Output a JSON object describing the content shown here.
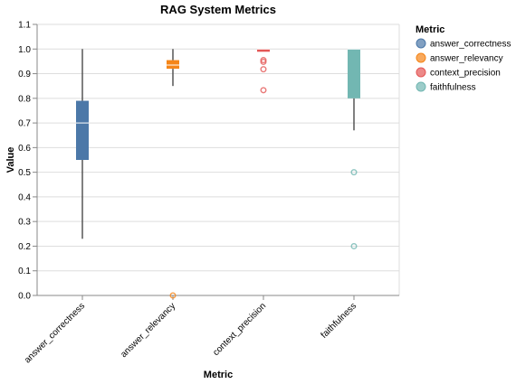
{
  "chart_data": {
    "type": "boxplot",
    "title": "RAG System Metrics",
    "xlabel": "Metric",
    "ylabel": "Value",
    "ylim": [
      0,
      1.1
    ],
    "yticks": [
      "0.0",
      "0.1",
      "0.2",
      "0.3",
      "0.4",
      "0.5",
      "0.6",
      "0.7",
      "0.8",
      "0.9",
      "1.0",
      "1.1"
    ],
    "categories": [
      "answer_correctness",
      "answer_relevancy",
      "context_precision",
      "faithfulness"
    ],
    "grid": "horizontal",
    "legend": {
      "title": "Metric",
      "position": "right",
      "entries": [
        "answer_correctness",
        "answer_relevancy",
        "context_precision",
        "faithfulness"
      ]
    },
    "series": [
      {
        "category": "answer_correctness",
        "color": "#4c78a8",
        "min": 0.23,
        "q1": 0.55,
        "median": 0.7,
        "q3": 0.79,
        "max": 1.0,
        "outliers": []
      },
      {
        "category": "answer_relevancy",
        "color": "#f58518",
        "min": 0.85,
        "q1": 0.92,
        "median": 0.935,
        "q3": 0.955,
        "max": 1.0,
        "outliers": [
          0.0
        ]
      },
      {
        "category": "context_precision",
        "color": "#e45756",
        "min": 0.99,
        "q1": 0.99,
        "median": 1.0,
        "q3": 1.0,
        "max": 1.0,
        "outliers": [
          0.955,
          0.948,
          0.918,
          0.833
        ]
      },
      {
        "category": "faithfulness",
        "color": "#72b7b2",
        "min": 0.67,
        "q1": 0.8,
        "median": 1.0,
        "q3": 1.0,
        "max": 1.0,
        "outliers": [
          0.5,
          0.2
        ]
      }
    ]
  }
}
